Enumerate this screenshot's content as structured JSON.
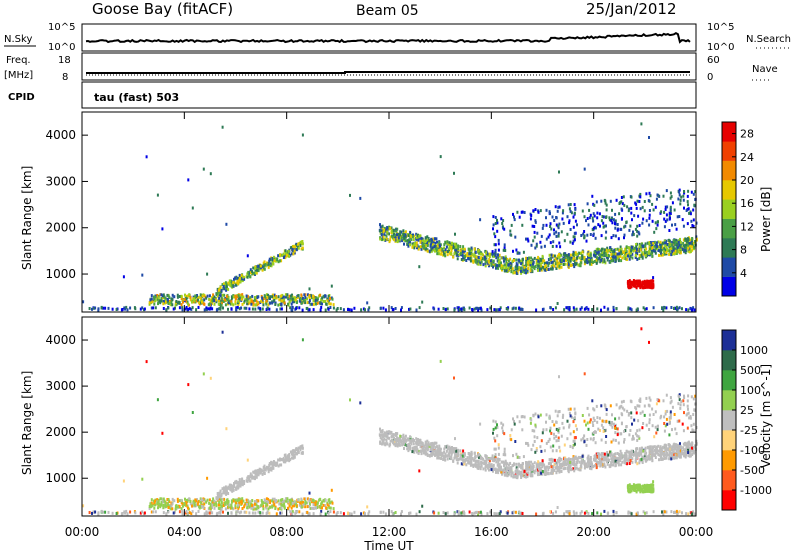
{
  "header": {
    "station": "Goose Bay (fitACF)",
    "beam": "Beam 05",
    "date": "25/Jan/2012"
  },
  "strips": {
    "nsky_label": "N.Sky",
    "nsearch_label": "N.Search",
    "nsky_ticks": [
      "10^5",
      "10^0"
    ],
    "nsearch_ticks": [
      "10^5",
      "10^0"
    ],
    "freq_label_1": "Freq.",
    "freq_label_2": "[MHz]",
    "freq_ticks": [
      "18",
      "8"
    ],
    "nave_label": "Nave",
    "nave_ticks": [
      "60",
      "0"
    ],
    "cpid_label": "CPID",
    "cpid_value": "tau (fast) 503"
  },
  "colors": {
    "power": [
      "#0000e6",
      "#1f4aa6",
      "#2e7a55",
      "#4a9f45",
      "#9ad020",
      "#e6c800",
      "#f28a00",
      "#f04000",
      "#e60000"
    ],
    "velocity": [
      "#1c2f96",
      "#2e6b4a",
      "#3fa540",
      "#93d050",
      "#bfbfbf",
      "#ffd37a",
      "#ff9a00",
      "#ff5a1e",
      "#ff0000"
    ],
    "ground_scatter": "#bcbcbc"
  },
  "chart_data": [
    {
      "type": "line",
      "title": "N.Sky / N.Search",
      "y_scale": "log",
      "ylim": [
        1,
        100000
      ],
      "x": [
        "00:00",
        "04:00",
        "08:00",
        "12:00",
        "16:00",
        "20:00",
        "00:00"
      ]
    },
    {
      "type": "line",
      "title": "Freq. [MHz] / Nave",
      "ylim": [
        8,
        18
      ],
      "xlim_hours": [
        0,
        24
      ]
    },
    {
      "type": "heatmap",
      "panel": "power",
      "xlabel": "Time UT",
      "ylabel": "Slant Range [km]",
      "x_ticks": [
        "00:00",
        "04:00",
        "08:00",
        "12:00",
        "16:00",
        "20:00",
        "00:00"
      ],
      "y_ticks": [
        "1000",
        "2000",
        "3000",
        "4000"
      ],
      "ylim_km": [
        180,
        4500
      ],
      "xlim_hours": [
        0,
        24
      ],
      "colorbar_label": "Power [dB]",
      "colorbar_ticks": [
        "4",
        "8",
        "12",
        "16",
        "20",
        "24",
        "28"
      ],
      "colorbar_range": [
        0,
        30
      ],
      "echo_regions": [
        {
          "t0": 2.5,
          "t1": 9.8,
          "r0": 260,
          "r1": 1750,
          "power_db": 12
        },
        {
          "t0": 11.6,
          "t1": 24.0,
          "r0": 900,
          "r1": 2600,
          "power_db": 14
        },
        {
          "t0": 21.3,
          "t1": 22.3,
          "r0": 650,
          "r1": 900,
          "power_db": 27
        }
      ]
    },
    {
      "type": "heatmap",
      "panel": "velocity",
      "xlabel": "Time UT",
      "ylabel": "Slant Range [km]",
      "x_ticks": [
        "00:00",
        "04:00",
        "08:00",
        "12:00",
        "16:00",
        "20:00",
        "00:00"
      ],
      "y_ticks": [
        "1000",
        "2000",
        "3000",
        "4000"
      ],
      "ylim_km": [
        180,
        4500
      ],
      "xlim_hours": [
        0,
        24
      ],
      "colorbar_label": "Velocity [m s^-1]",
      "colorbar_ticks": [
        "1000",
        "500",
        "100",
        "25",
        "-25",
        "-100",
        "-500",
        "-1000"
      ],
      "echo_regions": [
        {
          "t0": 2.5,
          "t1": 9.8,
          "r0": 260,
          "r1": 1750,
          "velocity_ms": 0
        },
        {
          "t0": 11.6,
          "t1": 24.0,
          "r0": 900,
          "r1": 2600,
          "velocity_ms": 0
        },
        {
          "t0": 21.3,
          "t1": 22.3,
          "r0": 650,
          "r1": 900,
          "velocity_ms": 0
        }
      ]
    }
  ]
}
